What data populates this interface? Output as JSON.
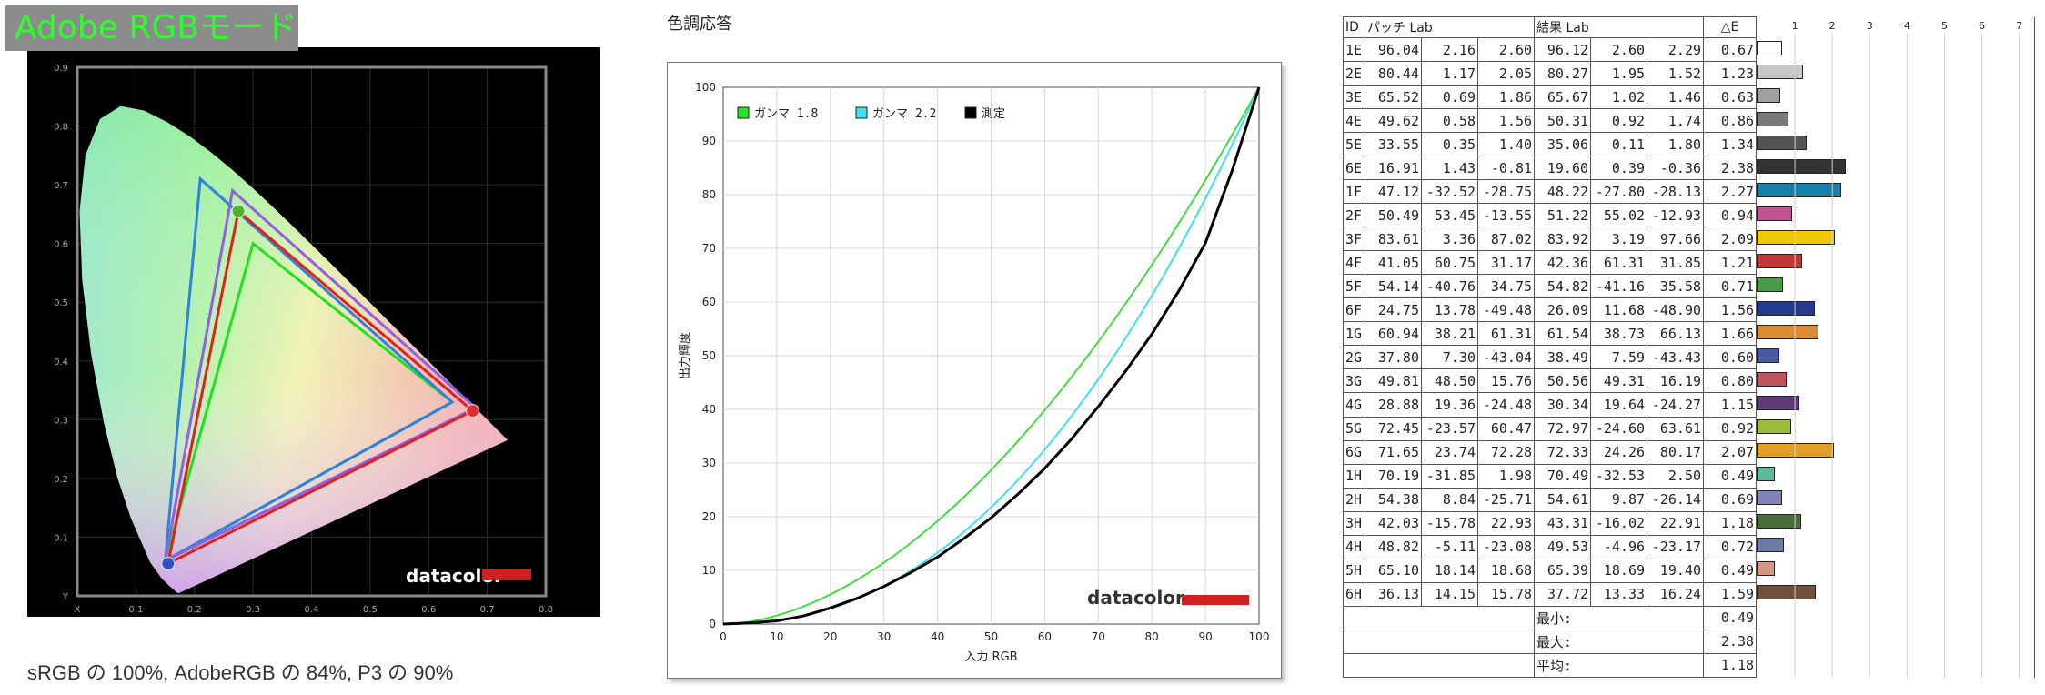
{
  "badge": {
    "text": "Adobe RGBモード"
  },
  "coverage_caption": "sRGB の 100%, AdobeRGB の 84%, P3 の 90%",
  "tone_title": "色調応答",
  "colors": {
    "gamma18": "#2fe02f",
    "gamma22": "#3fe0f0",
    "measured": "#000000",
    "srgb": "#20e020",
    "adobe": "#3080e0",
    "p3": "#9060e0",
    "measured_gamut": "#e02020"
  },
  "chart_data": [
    {
      "type": "scatter",
      "name": "cie",
      "xlim": [
        0,
        0.8
      ],
      "ylim": [
        0,
        0.9
      ],
      "xticks": [
        "X",
        "0.1",
        "0.2",
        "0.3",
        "0.4",
        "0.5",
        "0.6",
        "0.7",
        "0.8"
      ],
      "yticks": [
        "Y",
        "0.1",
        "0.2",
        "0.3",
        "0.4",
        "0.5",
        "0.6",
        "0.7",
        "0.8",
        "0.9"
      ],
      "grid": true,
      "logo": "datacolor",
      "locus": [
        [
          0.1741,
          0.005
        ],
        [
          0.1738,
          0.0049
        ],
        [
          0.1726,
          0.0048
        ],
        [
          0.1714,
          0.0051
        ],
        [
          0.1689,
          0.0069
        ],
        [
          0.1644,
          0.0109
        ],
        [
          0.1566,
          0.0177
        ],
        [
          0.144,
          0.0297
        ],
        [
          0.1241,
          0.0578
        ],
        [
          0.0913,
          0.1327
        ],
        [
          0.0687,
          0.2007
        ],
        [
          0.0454,
          0.295
        ],
        [
          0.0235,
          0.4127
        ],
        [
          0.0082,
          0.5384
        ],
        [
          0.0039,
          0.6548
        ],
        [
          0.0139,
          0.7502
        ],
        [
          0.0389,
          0.812
        ],
        [
          0.0743,
          0.8338
        ],
        [
          0.1142,
          0.8262
        ],
        [
          0.1547,
          0.8059
        ],
        [
          0.1929,
          0.7816
        ],
        [
          0.2296,
          0.7543
        ],
        [
          0.2658,
          0.7243
        ],
        [
          0.3016,
          0.6923
        ],
        [
          0.3373,
          0.6589
        ],
        [
          0.3731,
          0.6245
        ],
        [
          0.4087,
          0.5896
        ],
        [
          0.4441,
          0.5547
        ],
        [
          0.4788,
          0.5202
        ],
        [
          0.5125,
          0.4866
        ],
        [
          0.5448,
          0.4544
        ],
        [
          0.5752,
          0.4242
        ],
        [
          0.6029,
          0.3965
        ],
        [
          0.627,
          0.3725
        ],
        [
          0.6482,
          0.3514
        ],
        [
          0.6658,
          0.334
        ],
        [
          0.6801,
          0.3197
        ],
        [
          0.6915,
          0.3083
        ],
        [
          0.7006,
          0.2993
        ],
        [
          0.7079,
          0.292
        ],
        [
          0.714,
          0.2859
        ],
        [
          0.7347,
          0.2653
        ]
      ],
      "series": [
        {
          "name": "sRGB",
          "points": [
            [
              0.64,
              0.33
            ],
            [
              0.3,
              0.6
            ],
            [
              0.15,
              0.06
            ]
          ]
        },
        {
          "name": "Adobe RGB",
          "points": [
            [
              0.64,
              0.33
            ],
            [
              0.21,
              0.71
            ],
            [
              0.15,
              0.06
            ]
          ]
        },
        {
          "name": "P3",
          "points": [
            [
              0.68,
              0.32
            ],
            [
              0.265,
              0.69
            ],
            [
              0.15,
              0.06
            ]
          ]
        },
        {
          "name": "測定",
          "points": [
            [
              0.675,
              0.315
            ],
            [
              0.275,
              0.655
            ],
            [
              0.155,
              0.055
            ]
          ]
        }
      ]
    },
    {
      "type": "line",
      "name": "tone",
      "xlabel": "入力 RGB",
      "ylabel": "出力輝度",
      "xlim": [
        0,
        100
      ],
      "ylim": [
        0,
        100
      ],
      "ticks": [
        0,
        10,
        20,
        30,
        40,
        50,
        60,
        70,
        80,
        90,
        100
      ],
      "grid": true,
      "legend_position": "top-left",
      "logo": "datacolor",
      "series": [
        {
          "name": "ガンマ 1.8",
          "gamma": 1.8
        },
        {
          "name": "ガンマ 2.2",
          "gamma": 2.2
        },
        {
          "name": "測定",
          "x": [
            0,
            5,
            10,
            15,
            20,
            25,
            30,
            35,
            40,
            45,
            50,
            55,
            60,
            65,
            70,
            75,
            80,
            85,
            90,
            95,
            100
          ],
          "y": [
            0,
            0.2,
            0.6,
            1.5,
            3.0,
            4.8,
            7.0,
            9.6,
            12.5,
            16.0,
            19.8,
            24.2,
            29.0,
            34.5,
            40.5,
            47.0,
            54.0,
            62.0,
            71.0,
            84.5,
            100
          ]
        }
      ]
    },
    {
      "type": "table",
      "name": "delta_e",
      "headers": {
        "id": "ID",
        "target": "パッチ Lab",
        "result": "結果 Lab",
        "de": "△E"
      },
      "scale": [
        "1",
        "2",
        "3",
        "4",
        "5",
        "6",
        "7"
      ],
      "bar_max": 7,
      "rows": [
        {
          "id": "1E",
          "t": [
            "96.04",
            "2.16",
            "2.60"
          ],
          "r": [
            "96.12",
            "2.60",
            "2.29"
          ],
          "de": "0.67",
          "c": "#ffffff"
        },
        {
          "id": "2E",
          "t": [
            "80.44",
            "1.17",
            "2.05"
          ],
          "r": [
            "80.27",
            "1.95",
            "1.52"
          ],
          "de": "1.23",
          "c": "#c8c8c8"
        },
        {
          "id": "3E",
          "t": [
            "65.52",
            "0.69",
            "1.86"
          ],
          "r": [
            "65.67",
            "1.02",
            "1.46"
          ],
          "de": "0.63",
          "c": "#a0a0a0"
        },
        {
          "id": "4E",
          "t": [
            "49.62",
            "0.58",
            "1.56"
          ],
          "r": [
            "50.31",
            "0.92",
            "1.74"
          ],
          "de": "0.86",
          "c": "#7a7a7a"
        },
        {
          "id": "5E",
          "t": [
            "33.55",
            "0.35",
            "1.40"
          ],
          "r": [
            "35.06",
            "0.11",
            "1.80"
          ],
          "de": "1.34",
          "c": "#545454"
        },
        {
          "id": "6E",
          "t": [
            "16.91",
            "1.43",
            "-0.81"
          ],
          "r": [
            "19.60",
            "0.39",
            "-0.36"
          ],
          "de": "2.38",
          "c": "#333333"
        },
        {
          "id": "1F",
          "t": [
            "47.12",
            "-32.52",
            "-28.75"
          ],
          "r": [
            "48.22",
            "-27.80",
            "-28.13"
          ],
          "de": "2.27",
          "c": "#1a7fa6"
        },
        {
          "id": "2F",
          "t": [
            "50.49",
            "53.45",
            "-13.55"
          ],
          "r": [
            "51.22",
            "55.02",
            "-12.93"
          ],
          "de": "0.94",
          "c": "#c0558f"
        },
        {
          "id": "3F",
          "t": [
            "83.61",
            "3.36",
            "87.02"
          ],
          "r": [
            "83.92",
            "3.19",
            "97.66"
          ],
          "de": "2.09",
          "c": "#f0c800"
        },
        {
          "id": "4F",
          "t": [
            "41.05",
            "60.75",
            "31.17"
          ],
          "r": [
            "42.36",
            "61.31",
            "31.85"
          ],
          "de": "1.21",
          "c": "#c03838"
        },
        {
          "id": "5F",
          "t": [
            "54.14",
            "-40.76",
            "34.75"
          ],
          "r": [
            "54.82",
            "-41.16",
            "35.58"
          ],
          "de": "0.71",
          "c": "#4a9a48"
        },
        {
          "id": "6F",
          "t": [
            "24.75",
            "13.78",
            "-49.48"
          ],
          "r": [
            "26.09",
            "11.68",
            "-48.90"
          ],
          "de": "1.56",
          "c": "#243a8c"
        },
        {
          "id": "1G",
          "t": [
            "60.94",
            "38.21",
            "61.31"
          ],
          "r": [
            "61.54",
            "38.73",
            "66.13"
          ],
          "de": "1.66",
          "c": "#dc8a34"
        },
        {
          "id": "2G",
          "t": [
            "37.80",
            "7.30",
            "-43.04"
          ],
          "r": [
            "38.49",
            "7.59",
            "-43.43"
          ],
          "de": "0.60",
          "c": "#485aa4"
        },
        {
          "id": "3G",
          "t": [
            "49.81",
            "48.50",
            "15.76"
          ],
          "r": [
            "50.56",
            "49.31",
            "16.19"
          ],
          "de": "0.80",
          "c": "#c0545c"
        },
        {
          "id": "4G",
          "t": [
            "28.88",
            "19.36",
            "-24.48"
          ],
          "r": [
            "30.34",
            "19.64",
            "-24.27"
          ],
          "de": "1.15",
          "c": "#5c3c74"
        },
        {
          "id": "5G",
          "t": [
            "72.45",
            "-23.57",
            "60.47"
          ],
          "r": [
            "72.97",
            "-24.60",
            "63.61"
          ],
          "de": "0.92",
          "c": "#9cbc40"
        },
        {
          "id": "6G",
          "t": [
            "71.65",
            "23.74",
            "72.28"
          ],
          "r": [
            "72.33",
            "24.26",
            "80.17"
          ],
          "de": "2.07",
          "c": "#e0a028"
        },
        {
          "id": "1H",
          "t": [
            "70.19",
            "-31.85",
            "1.98"
          ],
          "r": [
            "70.49",
            "-32.53",
            "2.50"
          ],
          "de": "0.49",
          "c": "#60b898"
        },
        {
          "id": "2H",
          "t": [
            "54.38",
            "8.84",
            "-25.71"
          ],
          "r": [
            "54.61",
            "9.87",
            "-26.14"
          ],
          "de": "0.69",
          "c": "#8084b4"
        },
        {
          "id": "3H",
          "t": [
            "42.03",
            "-15.78",
            "22.93"
          ],
          "r": [
            "43.31",
            "-16.02",
            "22.91"
          ],
          "de": "1.18",
          "c": "#4c6c3c"
        },
        {
          "id": "4H",
          "t": [
            "48.82",
            "-5.11",
            "-23.08"
          ],
          "r": [
            "49.53",
            "-4.96",
            "-23.17"
          ],
          "de": "0.72",
          "c": "#6c7ca4"
        },
        {
          "id": "5H",
          "t": [
            "65.10",
            "18.14",
            "18.68"
          ],
          "r": [
            "65.39",
            "18.69",
            "19.40"
          ],
          "de": "0.49",
          "c": "#d49880"
        },
        {
          "id": "6H",
          "t": [
            "36.13",
            "14.15",
            "15.78"
          ],
          "r": [
            "37.72",
            "13.33",
            "16.24"
          ],
          "de": "1.59",
          "c": "#70503c"
        }
      ],
      "summary": [
        {
          "label": "最小:",
          "value": "0.49"
        },
        {
          "label": "最大:",
          "value": "2.38"
        },
        {
          "label": "平均:",
          "value": "1.18"
        }
      ]
    }
  ]
}
